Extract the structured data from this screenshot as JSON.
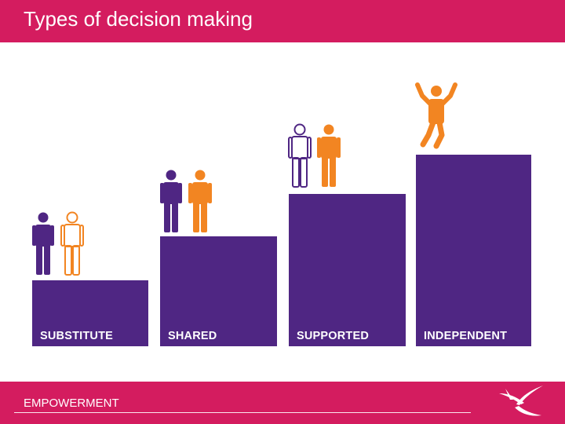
{
  "header": {
    "title": "Types of decision making"
  },
  "footer": {
    "label": "EMPOWERMENT"
  },
  "steps": [
    {
      "label": "SUBSTITUTE"
    },
    {
      "label": "SHARED"
    },
    {
      "label": "SUPPORTED"
    },
    {
      "label": "INDEPENDENT"
    }
  ],
  "colors": {
    "brand": "#d41c5f",
    "step": "#4f2683",
    "person_primary": "#4f2683",
    "person_secondary": "#f28522"
  }
}
